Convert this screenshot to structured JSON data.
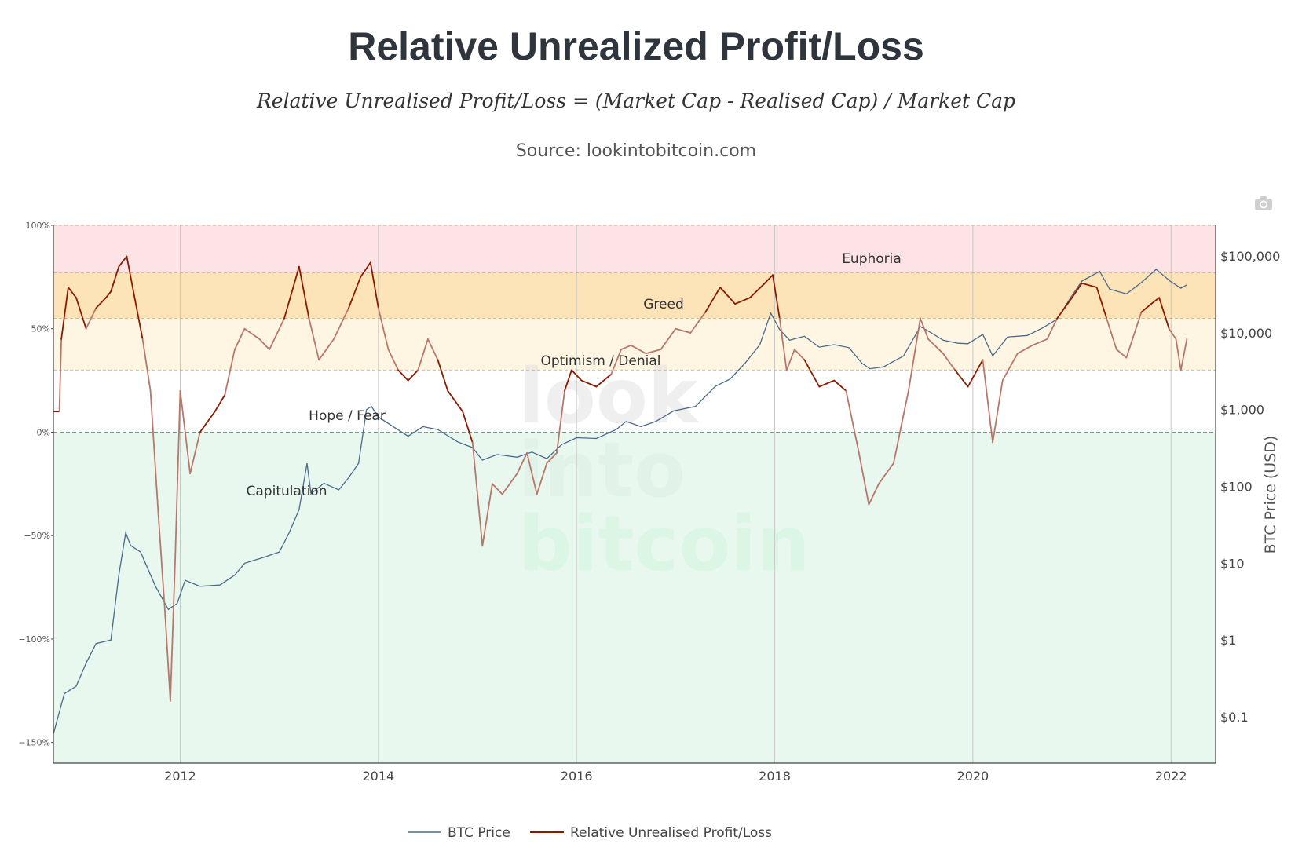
{
  "header": {
    "title": "Relative Unrealized Profit/Loss",
    "formula": "Relative Unrealised Profit/Loss = (Market Cap - Realised Cap) / Market Cap",
    "source": "Source: lookintobitcoin.com"
  },
  "watermark": [
    "look",
    "into",
    "bitcoin"
  ],
  "colors": {
    "euphoria": "#fde3e5",
    "greed": "#fde3b8",
    "optimism": "#fef6e3",
    "hope": "#ffffff",
    "capitulation": "#e8f8ef",
    "nupl_dark": "#8b1a00",
    "nupl_light": "#b8776a",
    "btc_price": "#4a6a8a"
  },
  "chart_data": {
    "type": "line",
    "x_axis": {
      "ticks": [
        "2012",
        "2014",
        "2016",
        "2018",
        "2020",
        "2022"
      ],
      "range": [
        2010.72,
        2022.45
      ]
    },
    "y_left": {
      "ticks": [
        "100%",
        "50%",
        "0%",
        "−50%",
        "−100%",
        "−150%"
      ],
      "tick_values": [
        100,
        50,
        0,
        -50,
        -100,
        -150
      ],
      "range": [
        -160,
        100
      ]
    },
    "y_right": {
      "label": "BTC Price (USD)",
      "type": "log",
      "ticks": [
        "$100,000",
        "$10,000",
        "$1,000",
        "$100",
        "$10",
        "$1",
        "$0.1"
      ],
      "tick_values": [
        100000,
        10000,
        1000,
        100,
        10,
        1,
        0.1
      ]
    },
    "zones": [
      {
        "label": "Euphoria",
        "from": 77,
        "to": 100
      },
      {
        "label": "Greed",
        "from": 55,
        "to": 77
      },
      {
        "label": "Optimism / Denial",
        "from": 30,
        "to": 55
      },
      {
        "label": "Hope / Fear",
        "from": 0,
        "to": 30
      },
      {
        "label": "Capitulation",
        "from": -160,
        "to": 0
      }
    ],
    "series": [
      {
        "name": "BTC Price",
        "axis": "right",
        "points": [
          [
            2010.72,
            0.06
          ],
          [
            2010.83,
            0.2
          ],
          [
            2010.95,
            0.25
          ],
          [
            2011.05,
            0.5
          ],
          [
            2011.15,
            0.9
          ],
          [
            2011.3,
            1
          ],
          [
            2011.38,
            7
          ],
          [
            2011.45,
            25
          ],
          [
            2011.5,
            17
          ],
          [
            2011.6,
            14
          ],
          [
            2011.75,
            5
          ],
          [
            2011.88,
            2.5
          ],
          [
            2011.97,
            3
          ],
          [
            2012.05,
            6
          ],
          [
            2012.2,
            5
          ],
          [
            2012.4,
            5.2
          ],
          [
            2012.55,
            7
          ],
          [
            2012.65,
            10
          ],
          [
            2012.85,
            12
          ],
          [
            2013.0,
            14
          ],
          [
            2013.1,
            25
          ],
          [
            2013.2,
            50
          ],
          [
            2013.28,
            200
          ],
          [
            2013.32,
            80
          ],
          [
            2013.45,
            110
          ],
          [
            2013.6,
            90
          ],
          [
            2013.7,
            130
          ],
          [
            2013.8,
            200
          ],
          [
            2013.88,
            1000
          ],
          [
            2013.93,
            1100
          ],
          [
            2014.0,
            800
          ],
          [
            2014.15,
            600
          ],
          [
            2014.3,
            450
          ],
          [
            2014.45,
            600
          ],
          [
            2014.6,
            550
          ],
          [
            2014.8,
            380
          ],
          [
            2014.95,
            320
          ],
          [
            2015.05,
            220
          ],
          [
            2015.2,
            260
          ],
          [
            2015.4,
            240
          ],
          [
            2015.55,
            280
          ],
          [
            2015.7,
            230
          ],
          [
            2015.85,
            350
          ],
          [
            2016.0,
            430
          ],
          [
            2016.2,
            420
          ],
          [
            2016.4,
            550
          ],
          [
            2016.5,
            700
          ],
          [
            2016.65,
            600
          ],
          [
            2016.8,
            700
          ],
          [
            2016.98,
            960
          ],
          [
            2017.2,
            1100
          ],
          [
            2017.4,
            2000
          ],
          [
            2017.55,
            2500
          ],
          [
            2017.7,
            4000
          ],
          [
            2017.85,
            7000
          ],
          [
            2017.96,
            18000
          ],
          [
            2018.05,
            11000
          ],
          [
            2018.15,
            8000
          ],
          [
            2018.3,
            9000
          ],
          [
            2018.45,
            6500
          ],
          [
            2018.6,
            7000
          ],
          [
            2018.75,
            6400
          ],
          [
            2018.88,
            4000
          ],
          [
            2018.96,
            3400
          ],
          [
            2019.1,
            3600
          ],
          [
            2019.3,
            5000
          ],
          [
            2019.47,
            12000
          ],
          [
            2019.55,
            10500
          ],
          [
            2019.7,
            8000
          ],
          [
            2019.85,
            7300
          ],
          [
            2019.95,
            7200
          ],
          [
            2020.1,
            9500
          ],
          [
            2020.2,
            5000
          ],
          [
            2020.35,
            8800
          ],
          [
            2020.55,
            9200
          ],
          [
            2020.7,
            11500
          ],
          [
            2020.85,
            15000
          ],
          [
            2020.99,
            29000
          ],
          [
            2021.1,
            47000
          ],
          [
            2021.28,
            63000
          ],
          [
            2021.38,
            37000
          ],
          [
            2021.55,
            32000
          ],
          [
            2021.7,
            45000
          ],
          [
            2021.85,
            67000
          ],
          [
            2021.99,
            47000
          ],
          [
            2022.1,
            38000
          ],
          [
            2022.16,
            42000
          ]
        ]
      },
      {
        "name": "Relative Unrealised Profit/Loss",
        "axis": "left",
        "points": [
          [
            2010.72,
            10
          ],
          [
            2010.78,
            10
          ],
          [
            2010.8,
            45
          ],
          [
            2010.87,
            70
          ],
          [
            2010.95,
            65
          ],
          [
            2011.05,
            50
          ],
          [
            2011.15,
            60
          ],
          [
            2011.25,
            65
          ],
          [
            2011.3,
            68
          ],
          [
            2011.38,
            80
          ],
          [
            2011.46,
            85
          ],
          [
            2011.52,
            70
          ],
          [
            2011.62,
            45
          ],
          [
            2011.7,
            20
          ],
          [
            2011.78,
            -40
          ],
          [
            2011.85,
            -90
          ],
          [
            2011.9,
            -130
          ],
          [
            2011.95,
            -60
          ],
          [
            2012.0,
            20
          ],
          [
            2012.1,
            -20
          ],
          [
            2012.2,
            0
          ],
          [
            2012.35,
            10
          ],
          [
            2012.45,
            18
          ],
          [
            2012.55,
            40
          ],
          [
            2012.65,
            50
          ],
          [
            2012.8,
            45
          ],
          [
            2012.9,
            40
          ],
          [
            2013.05,
            55
          ],
          [
            2013.2,
            80
          ],
          [
            2013.3,
            55
          ],
          [
            2013.4,
            35
          ],
          [
            2013.55,
            45
          ],
          [
            2013.7,
            60
          ],
          [
            2013.82,
            75
          ],
          [
            2013.92,
            82
          ],
          [
            2014.0,
            60
          ],
          [
            2014.1,
            40
          ],
          [
            2014.2,
            30
          ],
          [
            2014.3,
            25
          ],
          [
            2014.4,
            30
          ],
          [
            2014.5,
            45
          ],
          [
            2014.6,
            35
          ],
          [
            2014.7,
            20
          ],
          [
            2014.85,
            10
          ],
          [
            2014.95,
            -5
          ],
          [
            2015.05,
            -55
          ],
          [
            2015.15,
            -25
          ],
          [
            2015.25,
            -30
          ],
          [
            2015.4,
            -20
          ],
          [
            2015.5,
            -10
          ],
          [
            2015.6,
            -30
          ],
          [
            2015.7,
            -15
          ],
          [
            2015.8,
            -10
          ],
          [
            2015.88,
            20
          ],
          [
            2015.95,
            30
          ],
          [
            2016.05,
            25
          ],
          [
            2016.2,
            22
          ],
          [
            2016.35,
            28
          ],
          [
            2016.45,
            40
          ],
          [
            2016.55,
            42
          ],
          [
            2016.7,
            38
          ],
          [
            2016.85,
            40
          ],
          [
            2017.0,
            50
          ],
          [
            2017.15,
            48
          ],
          [
            2017.3,
            58
          ],
          [
            2017.45,
            70
          ],
          [
            2017.6,
            62
          ],
          [
            2017.75,
            65
          ],
          [
            2017.9,
            72
          ],
          [
            2017.98,
            76
          ],
          [
            2018.05,
            55
          ],
          [
            2018.12,
            30
          ],
          [
            2018.2,
            40
          ],
          [
            2018.3,
            35
          ],
          [
            2018.45,
            22
          ],
          [
            2018.6,
            25
          ],
          [
            2018.72,
            20
          ],
          [
            2018.85,
            -10
          ],
          [
            2018.95,
            -35
          ],
          [
            2019.05,
            -25
          ],
          [
            2019.2,
            -15
          ],
          [
            2019.35,
            20
          ],
          [
            2019.47,
            55
          ],
          [
            2019.55,
            45
          ],
          [
            2019.7,
            38
          ],
          [
            2019.82,
            30
          ],
          [
            2019.95,
            22
          ],
          [
            2020.1,
            35
          ],
          [
            2020.2,
            -5
          ],
          [
            2020.3,
            25
          ],
          [
            2020.45,
            38
          ],
          [
            2020.6,
            42
          ],
          [
            2020.75,
            45
          ],
          [
            2020.85,
            55
          ],
          [
            2021.0,
            65
          ],
          [
            2021.1,
            72
          ],
          [
            2021.25,
            70
          ],
          [
            2021.35,
            55
          ],
          [
            2021.45,
            40
          ],
          [
            2021.55,
            36
          ],
          [
            2021.7,
            58
          ],
          [
            2021.8,
            62
          ],
          [
            2021.88,
            65
          ],
          [
            2021.98,
            50
          ],
          [
            2022.05,
            45
          ],
          [
            2022.1,
            30
          ],
          [
            2022.16,
            45
          ]
        ]
      }
    ],
    "legend": {
      "position": "bottom-center",
      "entries": [
        "BTC Price",
        "Relative Unrealised Profit/Loss"
      ]
    }
  }
}
